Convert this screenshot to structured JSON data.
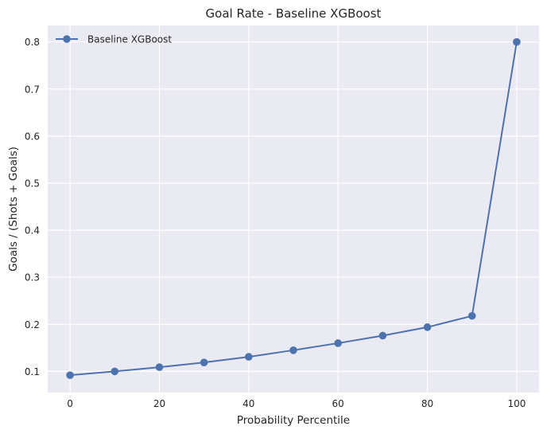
{
  "chart_data": {
    "type": "line",
    "title": "Goal Rate - Baseline XGBoost",
    "xlabel": "Probability Percentile",
    "ylabel": "Goals / (Shots + Goals)",
    "xlim": [
      -5,
      105
    ],
    "ylim": [
      0.055,
      0.835
    ],
    "xticks": [
      0,
      20,
      40,
      60,
      80,
      100
    ],
    "yticks": [
      0.1,
      0.2,
      0.3,
      0.4,
      0.5,
      0.6,
      0.7,
      0.8
    ],
    "grid": true,
    "legend_position": "top-left",
    "series": [
      {
        "name": "Baseline XGBoost",
        "color": "#4c72b0",
        "marker": "circle",
        "x": [
          0,
          10,
          20,
          30,
          40,
          50,
          60,
          70,
          80,
          90,
          100
        ],
        "y": [
          0.092,
          0.1,
          0.109,
          0.119,
          0.131,
          0.145,
          0.16,
          0.176,
          0.194,
          0.218,
          0.8
        ]
      }
    ]
  },
  "colors": {
    "plot_background": "#eaeaf2",
    "grid": "#ffffff",
    "line": "#4c72b0"
  }
}
